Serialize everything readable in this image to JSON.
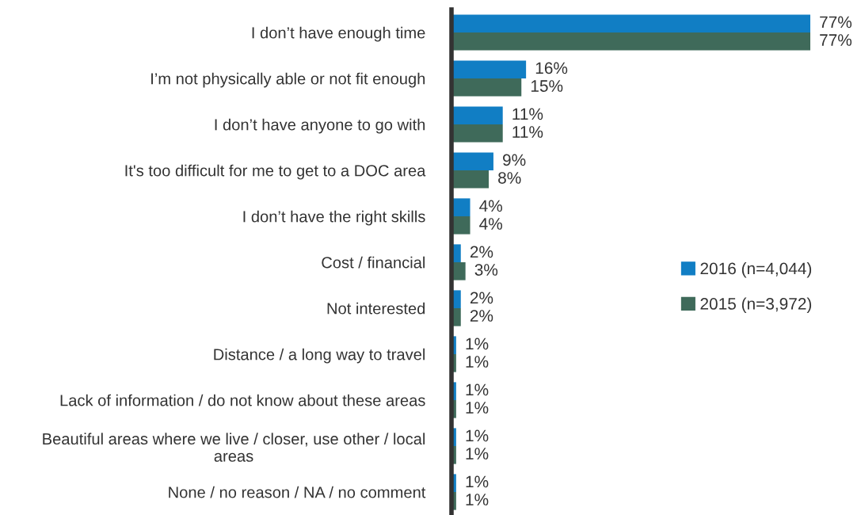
{
  "chart_data": {
    "type": "bar",
    "orientation": "horizontal",
    "tick_labels": "y",
    "grid": false,
    "legend": "right",
    "categories": [
      "I don’t have enough time",
      "I’m not physically able or not fit enough",
      "I don’t have anyone to go with",
      "It's too difficult for me to get to a DOC area",
      "I don’t have the right skills",
      "Cost / financial",
      "Not interested",
      "Distance / a long way to travel",
      "Lack of information / do not know about these areas",
      "Beautiful areas where we live / closer, use other / local\nareas",
      "None / no reason / NA / no comment"
    ],
    "series": [
      {
        "name": "2016 (n=4,044)",
        "color": "#117ec4",
        "values": [
          77,
          16,
          11,
          9,
          4,
          2,
          2,
          1,
          1,
          1,
          1
        ],
        "value_labels": [
          "77%",
          "16%",
          "11%",
          "9%",
          "4%",
          "2%",
          "2%",
          "1%",
          "1%",
          "1%",
          "1%"
        ]
      },
      {
        "name": "2015 (n=3,972)",
        "color": "#3f6a5a",
        "values": [
          77,
          15,
          11,
          8,
          4,
          3,
          2,
          1,
          1,
          1,
          1
        ],
        "value_labels": [
          "77%",
          "15%",
          "11%",
          "8%",
          "4%",
          "3%",
          "2%",
          "1%",
          "1%",
          "1%",
          "1%"
        ]
      }
    ]
  }
}
